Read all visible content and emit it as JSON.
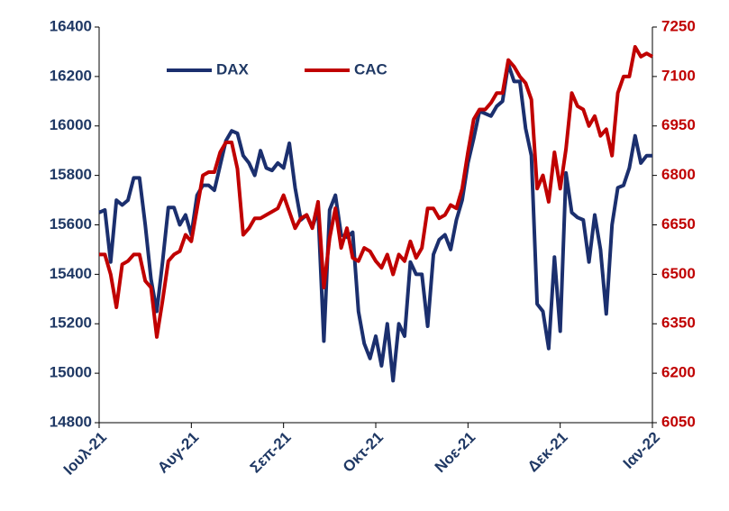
{
  "chart_data": {
    "type": "line",
    "categories": [
      "Ιουλ-21",
      null,
      null,
      null,
      null,
      null,
      null,
      null,
      null,
      null,
      null,
      null,
      null,
      null,
      null,
      null,
      "Αυγ-21",
      null,
      null,
      null,
      null,
      null,
      null,
      null,
      null,
      null,
      null,
      null,
      null,
      null,
      null,
      null,
      "Σεπ-21",
      null,
      null,
      null,
      null,
      null,
      null,
      null,
      null,
      null,
      null,
      null,
      null,
      null,
      null,
      null,
      "Οκτ-21",
      null,
      null,
      null,
      null,
      null,
      null,
      null,
      null,
      null,
      null,
      null,
      null,
      null,
      null,
      null,
      "Νοε-21",
      null,
      null,
      null,
      null,
      null,
      null,
      null,
      null,
      null,
      null,
      null,
      null,
      null,
      null,
      null,
      "Δεκ-21",
      null,
      null,
      null,
      null,
      null,
      null,
      null,
      null,
      null,
      null,
      null,
      null,
      null,
      null,
      null,
      "Ιαν-22"
    ],
    "series": [
      {
        "name": "DAX",
        "color": "#1b2f6e",
        "values": [
          15650,
          15660,
          15450,
          15700,
          15680,
          15700,
          15790,
          15790,
          15600,
          15380,
          15250,
          15450,
          15670,
          15670,
          15600,
          15640,
          15560,
          15720,
          15760,
          15760,
          15740,
          15840,
          15940,
          15980,
          15970,
          15880,
          15850,
          15800,
          15900,
          15830,
          15820,
          15850,
          15830,
          15930,
          15750,
          15620,
          15640,
          15590,
          15660,
          15130,
          15660,
          15720,
          15560,
          15550,
          15570,
          15250,
          15120,
          15060,
          15150,
          15030,
          15200,
          14970,
          15200,
          15150,
          15450,
          15400,
          15400,
          15190,
          15480,
          15540,
          15560,
          15500,
          15620,
          15700,
          15850,
          15950,
          16060,
          16050,
          16040,
          16080,
          16100,
          16250,
          16180,
          16180,
          15990,
          15880,
          15280,
          15250,
          15100,
          15470,
          15170,
          15810,
          15650,
          15630,
          15620,
          15450,
          15640,
          15500,
          15240,
          15600,
          15750,
          15760,
          15830,
          15960,
          15850,
          15880,
          15880
        ]
      },
      {
        "name": "CAC",
        "color": "#c00000",
        "axis": "y2",
        "values": [
          6560,
          6560,
          6500,
          6400,
          6530,
          6540,
          6560,
          6560,
          6480,
          6460,
          6310,
          6420,
          6540,
          6560,
          6570,
          6620,
          6600,
          6700,
          6800,
          6810,
          6810,
          6870,
          6900,
          6900,
          6820,
          6620,
          6640,
          6670,
          6670,
          6680,
          6690,
          6700,
          6740,
          6690,
          6640,
          6670,
          6680,
          6640,
          6720,
          6460,
          6610,
          6700,
          6580,
          6640,
          6550,
          6540,
          6580,
          6570,
          6540,
          6520,
          6560,
          6500,
          6560,
          6540,
          6600,
          6550,
          6580,
          6700,
          6700,
          6670,
          6680,
          6710,
          6700,
          6760,
          6870,
          6970,
          7000,
          7000,
          7020,
          7050,
          7050,
          7150,
          7130,
          7100,
          7080,
          7030,
          6760,
          6800,
          6720,
          6870,
          6760,
          6880,
          7050,
          7010,
          7000,
          6950,
          6980,
          6920,
          6940,
          6860,
          7050,
          7100,
          7100,
          7190,
          7160,
          7170,
          7160
        ]
      }
    ],
    "ylim": [
      14800,
      16400
    ],
    "yticks": [
      14800,
      15000,
      15200,
      15400,
      15600,
      15800,
      16000,
      16200,
      16400
    ],
    "y2lim": [
      6050,
      7250
    ],
    "y2ticks": [
      6050,
      6200,
      6350,
      6500,
      6650,
      6800,
      6950,
      7100,
      7250
    ],
    "legend": "upper left"
  }
}
